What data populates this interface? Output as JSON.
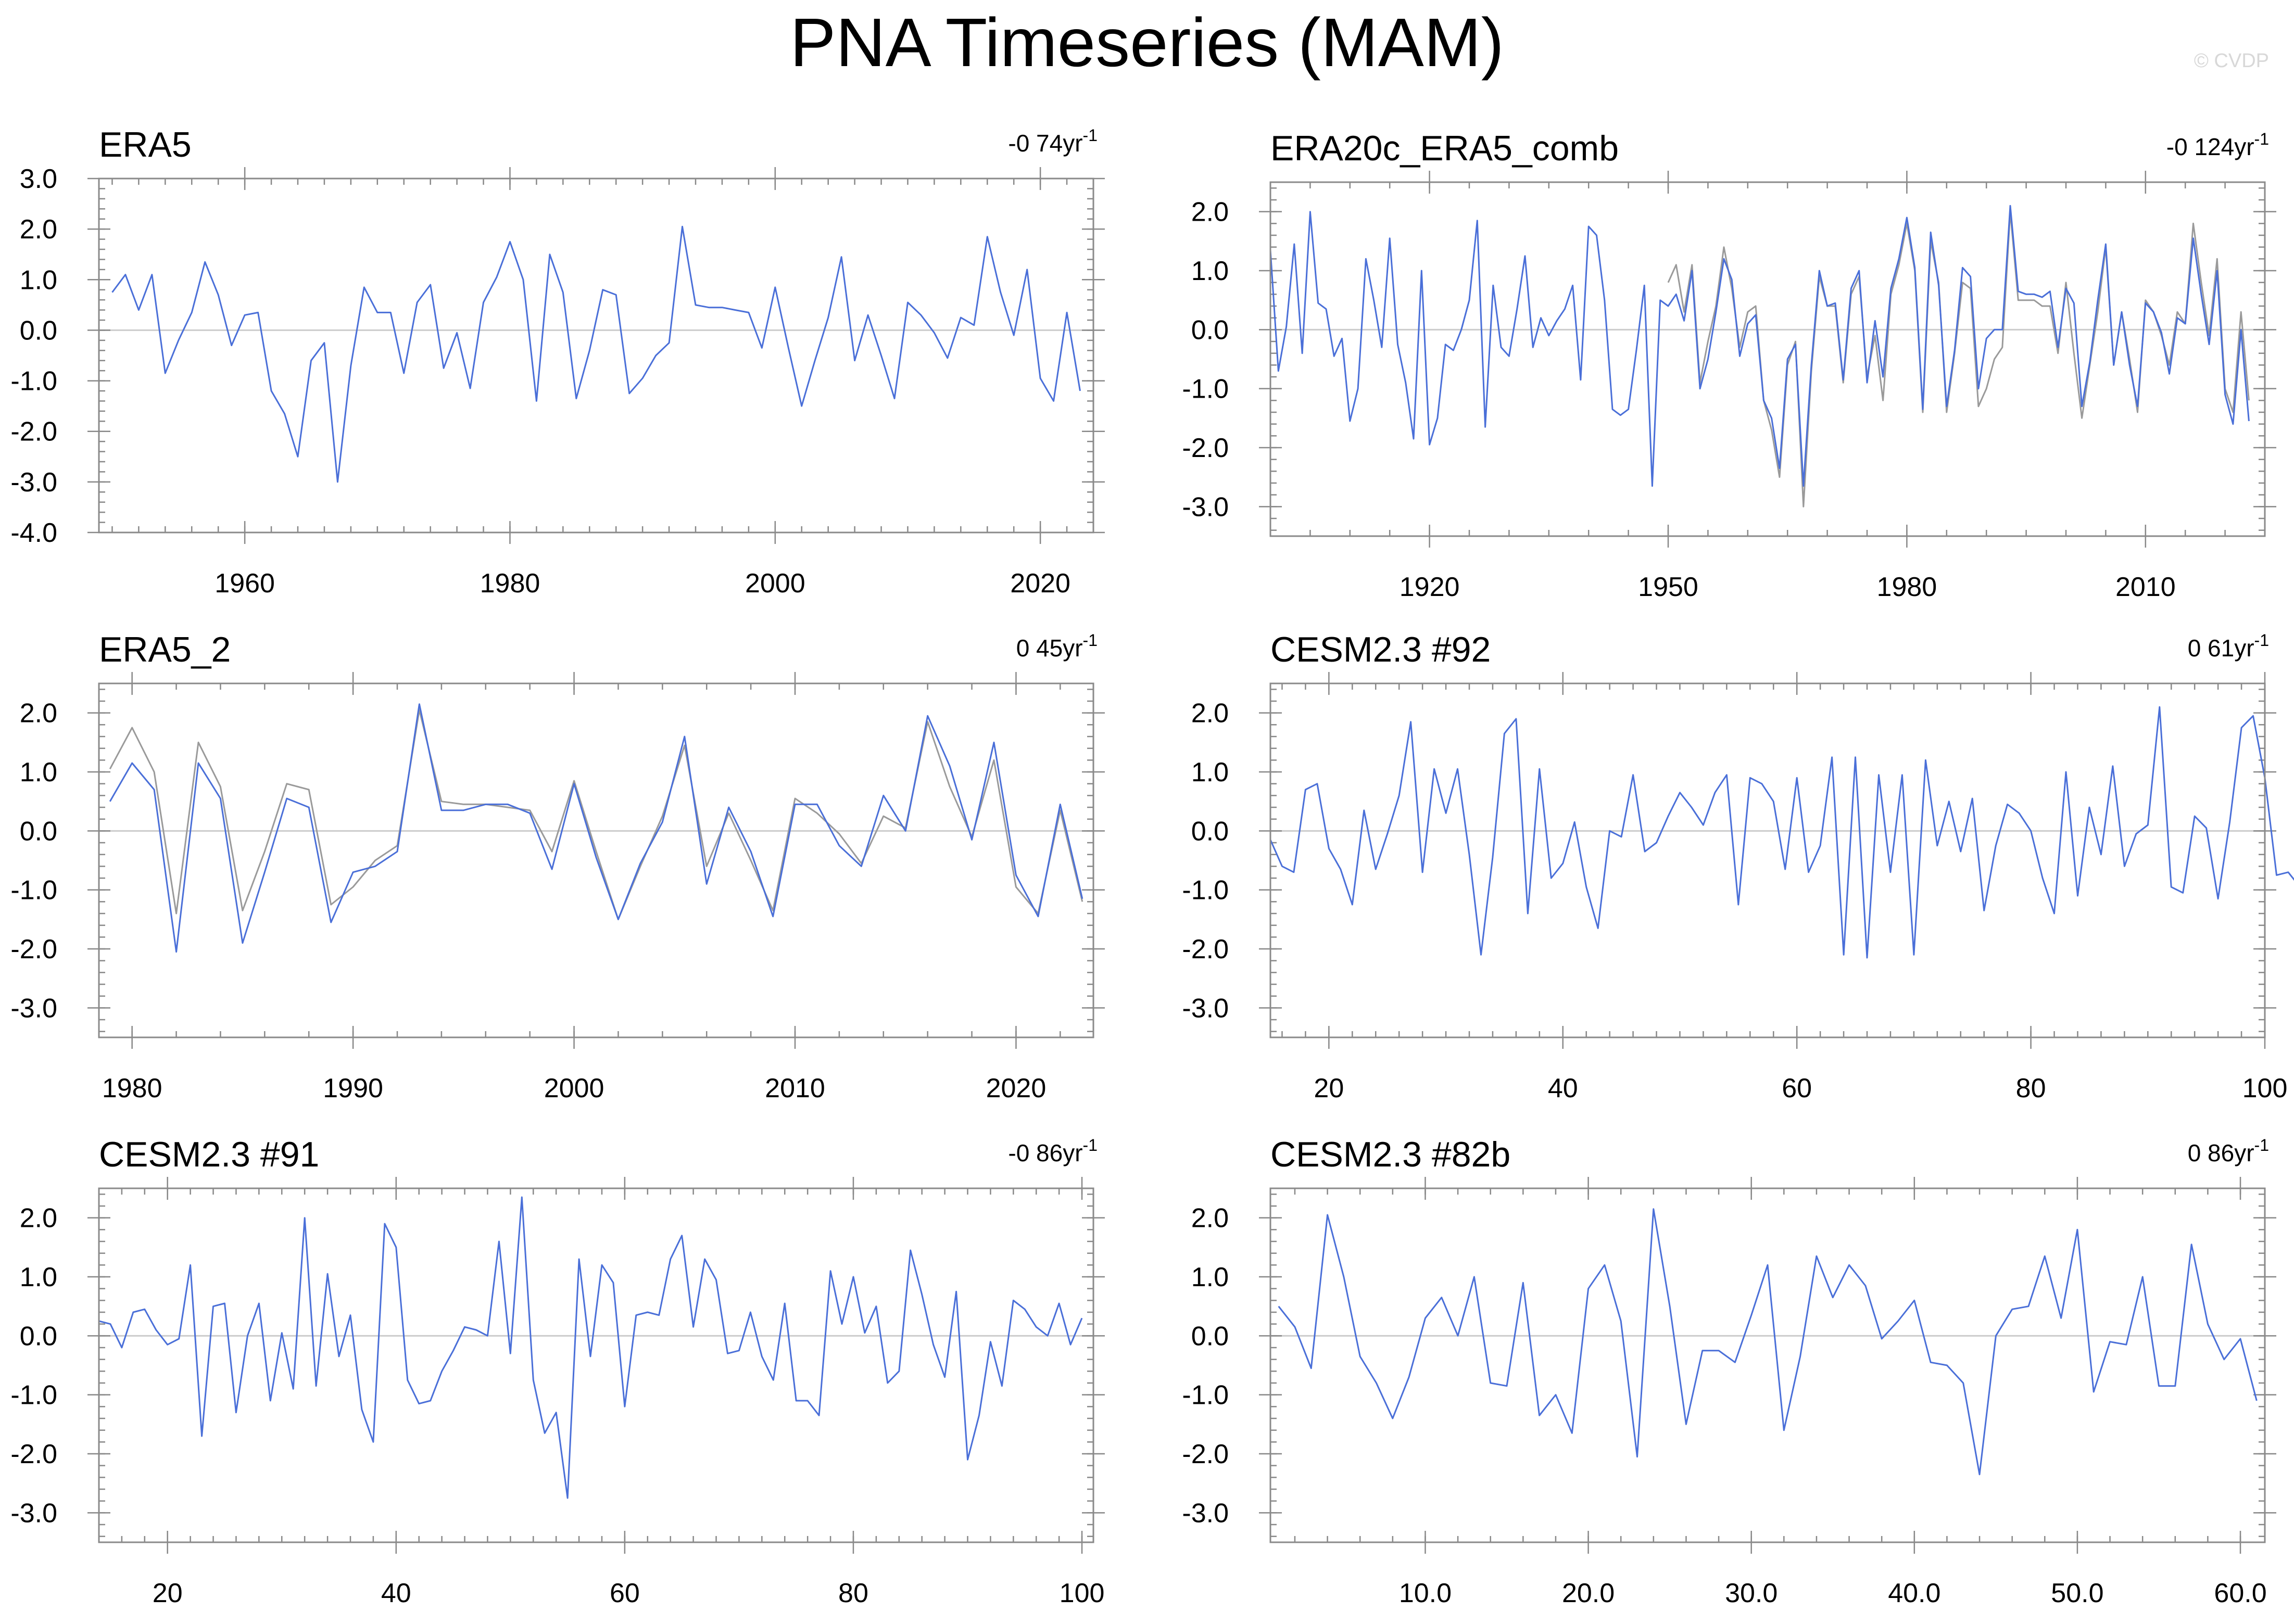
{
  "title": "PNA Timeseries (MAM)",
  "watermark": "© CVDP",
  "colors": {
    "obs_series": "#4a6fd8",
    "ref_series": "#9a9a9a",
    "zero_line": "#cccccc",
    "frame": "#8a8a8a"
  },
  "chart_data": [
    {
      "type": "line",
      "title": "ERA5",
      "trend_label": "-0 74yr",
      "trend_exponent": "-1",
      "xlim": [
        1949,
        2024
      ],
      "ylim": [
        -4.0,
        3.0
      ],
      "xticks": [
        1960,
        1980,
        2000,
        2020
      ],
      "xtick_labels": [
        "1960",
        "1980",
        "2000",
        "2020"
      ],
      "yticks": [
        -4.0,
        -3.0,
        -2.0,
        -1.0,
        0.0,
        1.0,
        2.0,
        3.0
      ],
      "ytick_labels": [
        "-4.0",
        "-3.0",
        "-2.0",
        "-1.0",
        "0.0",
        "1.0",
        "2.0",
        "3.0"
      ],
      "series": [
        {
          "name": "ERA5",
          "color": "#4a6fd8",
          "x_start": 1950,
          "values": [
            0.75,
            1.1,
            0.4,
            1.1,
            -0.85,
            -0.2,
            0.35,
            1.35,
            0.7,
            -0.3,
            0.3,
            0.35,
            -1.2,
            -1.65,
            -2.5,
            -0.6,
            -0.25,
            -3.0,
            -0.7,
            0.85,
            0.35,
            0.35,
            -0.85,
            0.55,
            0.9,
            -0.75,
            -0.05,
            -1.15,
            0.55,
            1.05,
            1.75,
            1.0,
            -1.4,
            1.5,
            0.75,
            -1.35,
            -0.4,
            0.8,
            0.7,
            -1.25,
            -0.95,
            -0.5,
            -0.25,
            2.05,
            0.5,
            0.45,
            0.45,
            0.4,
            0.35,
            -0.35,
            0.85,
            -0.35,
            -1.5,
            -0.6,
            0.25,
            1.45,
            -0.6,
            0.3,
            -0.5,
            -1.35,
            0.55,
            0.3,
            -0.05,
            -0.55,
            0.25,
            0.1,
            1.85,
            0.75,
            -0.1,
            1.2,
            -0.95,
            -1.4,
            0.35,
            -1.2
          ]
        }
      ]
    },
    {
      "type": "line",
      "title": "ERA20c_ERA5_comb",
      "trend_label": "-0 124yr",
      "trend_exponent": "-1",
      "xlim": [
        1900,
        2025
      ],
      "ylim": [
        -3.5,
        2.5
      ],
      "xticks": [
        1920,
        1950,
        1980,
        2010
      ],
      "xtick_labels": [
        "1920",
        "1950",
        "1980",
        "2010"
      ],
      "yticks": [
        -3.0,
        -2.0,
        -1.0,
        0.0,
        1.0,
        2.0
      ],
      "ytick_labels": [
        "-3.0",
        "-2.0",
        "-1.0",
        "0.0",
        "1.0",
        "2.0"
      ],
      "series": [
        {
          "name": "ERA5",
          "color": "#9a9a9a",
          "x_start": 1950,
          "values": [
            0.8,
            1.1,
            0.3,
            1.1,
            -0.9,
            -0.2,
            0.4,
            1.4,
            0.7,
            -0.3,
            0.3,
            0.4,
            -1.2,
            -1.7,
            -2.5,
            -0.6,
            -0.2,
            -3.0,
            -0.7,
            0.9,
            0.4,
            0.4,
            -0.9,
            0.6,
            0.9,
            -0.8,
            -0.1,
            -1.2,
            0.6,
            1.1,
            1.8,
            1.0,
            -1.4,
            1.5,
            0.8,
            -1.4,
            -0.4,
            0.8,
            0.7,
            -1.3,
            -1.0,
            -0.5,
            -0.3,
            2.0,
            0.5,
            0.5,
            0.5,
            0.4,
            0.4,
            -0.4,
            0.8,
            -0.4,
            -1.5,
            -0.6,
            0.3,
            1.4,
            -0.6,
            0.3,
            -0.5,
            -1.4,
            0.5,
            0.3,
            -0.1,
            -0.6,
            0.3,
            0.1,
            1.8,
            0.8,
            -0.1,
            1.2,
            -1.0,
            -1.4,
            0.3,
            -1.2
          ]
        },
        {
          "name": "ERA20c",
          "color": "#4a6fd8",
          "x_start": 1900,
          "values": [
            1.35,
            -0.7,
            0.05,
            1.45,
            -0.4,
            2.0,
            0.45,
            0.35,
            -0.45,
            -0.15,
            -1.55,
            -1.0,
            1.2,
            0.5,
            -0.3,
            1.55,
            -0.25,
            -0.9,
            -1.85,
            1.0,
            -1.95,
            -1.5,
            -0.25,
            -0.35,
            0.0,
            0.5,
            1.85,
            -1.65,
            0.75,
            -0.3,
            -0.45,
            0.35,
            1.25,
            -0.3,
            0.2,
            -0.1,
            0.15,
            0.35,
            0.75,
            -0.85,
            1.75,
            1.6,
            0.5,
            -1.35,
            -1.45,
            -1.35,
            -0.35,
            0.75,
            -2.65,
            0.5,
            0.4,
            0.6,
            0.15,
            1.0,
            -1.0,
            -0.5,
            0.3,
            1.2,
            0.85,
            -0.45,
            0.1,
            0.25,
            -1.2,
            -1.5,
            -2.35,
            -0.5,
            -0.25,
            -2.65,
            -0.6,
            1.0,
            0.4,
            0.45,
            -0.85,
            0.7,
            1.0,
            -0.9,
            0.15,
            -0.8,
            0.7,
            1.2,
            1.9,
            1.05,
            -1.35,
            1.65,
            0.75,
            -1.3,
            -0.35,
            1.05,
            0.9,
            -1.0,
            -0.15,
            0.0,
            0.0,
            2.1,
            0.65,
            0.6,
            0.6,
            0.55,
            0.65,
            -0.3,
            0.7,
            0.45,
            -1.3,
            -0.55,
            0.5,
            1.45,
            -0.6,
            0.3,
            -0.6,
            -1.3,
            0.45,
            0.3,
            -0.05,
            -0.75,
            0.2,
            0.1,
            1.55,
            0.6,
            -0.25,
            1.0,
            -1.1,
            -1.6,
            0.0,
            -1.55
          ]
        }
      ]
    },
    {
      "type": "line",
      "title": "ERA5_2",
      "trend_label": "0 45yr",
      "trend_exponent": "-1",
      "xlim": [
        1978.5,
        2023.5
      ],
      "ylim": [
        -3.5,
        2.5
      ],
      "xticks": [
        1980,
        1990,
        2000,
        2010,
        2020
      ],
      "xtick_labels": [
        "1980",
        "1990",
        "2000",
        "2010",
        "2020"
      ],
      "yticks": [
        -3.0,
        -2.0,
        -1.0,
        0.0,
        1.0,
        2.0
      ],
      "ytick_labels": [
        "-3.0",
        "-2.0",
        "-1.0",
        "0.0",
        "1.0",
        "2.0"
      ],
      "series": [
        {
          "name": "ERA5",
          "color": "#9a9a9a",
          "x_start": 1979,
          "values": [
            1.05,
            1.75,
            1.0,
            -1.4,
            1.5,
            0.75,
            -1.35,
            -0.35,
            0.8,
            0.7,
            -1.25,
            -0.95,
            -0.5,
            -0.25,
            2.05,
            0.5,
            0.45,
            0.45,
            0.4,
            0.35,
            -0.35,
            0.85,
            -0.35,
            -1.5,
            -0.6,
            0.25,
            1.45,
            -0.6,
            0.3,
            -0.5,
            -1.35,
            0.55,
            0.3,
            -0.05,
            -0.55,
            0.25,
            0.05,
            1.85,
            0.75,
            -0.1,
            1.2,
            -0.95,
            -1.4,
            0.35,
            -1.2
          ]
        },
        {
          "name": "ERA5_2",
          "color": "#4a6fd8",
          "x_start": 1979,
          "values": [
            0.5,
            1.15,
            0.7,
            -2.05,
            1.15,
            0.55,
            -1.9,
            -0.7,
            0.55,
            0.4,
            -1.55,
            -0.7,
            -0.6,
            -0.35,
            2.15,
            0.35,
            0.35,
            0.45,
            0.45,
            0.3,
            -0.65,
            0.8,
            -0.45,
            -1.5,
            -0.55,
            0.15,
            1.6,
            -0.9,
            0.4,
            -0.35,
            -1.45,
            0.45,
            0.45,
            -0.25,
            -0.6,
            0.6,
            0.0,
            1.95,
            1.1,
            -0.15,
            1.5,
            -0.75,
            -1.45,
            0.45,
            -1.15
          ]
        }
      ]
    },
    {
      "type": "line",
      "title": "CESM2.3 #92",
      "trend_label": "0 61yr",
      "trend_exponent": "-1",
      "xlim": [
        15,
        100
      ],
      "ylim": [
        -3.5,
        2.5
      ],
      "xticks": [
        20,
        40,
        60,
        80,
        100
      ],
      "xtick_labels": [
        "20",
        "40",
        "60",
        "80",
        "100"
      ],
      "yticks": [
        -3.0,
        -2.0,
        -1.0,
        0.0,
        1.0,
        2.0
      ],
      "ytick_labels": [
        "-3.0",
        "-2.0",
        "-1.0",
        "0.0",
        "1.0",
        "2.0"
      ],
      "series": [
        {
          "name": "CESM2.3 #92",
          "color": "#4a6fd8",
          "x_start": 15,
          "values": [
            -0.15,
            -0.6,
            -0.7,
            0.7,
            0.8,
            -0.3,
            -0.65,
            -1.25,
            0.35,
            -0.65,
            -0.05,
            0.6,
            1.85,
            -0.7,
            1.05,
            0.3,
            1.05,
            -0.4,
            -2.1,
            -0.45,
            1.65,
            1.9,
            -1.4,
            1.05,
            -0.8,
            -0.55,
            0.15,
            -0.95,
            -1.65,
            0.0,
            -0.1,
            0.95,
            -0.35,
            -0.2,
            0.25,
            0.65,
            0.4,
            0.1,
            0.65,
            0.95,
            -1.25,
            0.9,
            0.8,
            0.5,
            -0.65,
            0.9,
            -0.7,
            -0.25,
            1.25,
            -2.1,
            1.25,
            -2.15,
            0.95,
            -0.7,
            0.95,
            -2.1,
            1.2,
            -0.25,
            0.5,
            -0.35,
            0.55,
            -1.35,
            -0.25,
            0.45,
            0.3,
            0.0,
            -0.8,
            -1.4,
            1.0,
            -1.1,
            0.4,
            -0.4,
            1.1,
            -0.6,
            -0.05,
            0.1,
            2.1,
            -0.95,
            -1.05,
            0.25,
            0.05,
            -1.15,
            0.15,
            1.75,
            1.95,
            0.9,
            -0.75,
            -0.7,
            -0.95
          ]
        }
      ]
    },
    {
      "type": "line",
      "title": "CESM2.3 #91",
      "trend_label": "-0 86yr",
      "trend_exponent": "-1",
      "xlim": [
        14,
        101
      ],
      "ylim": [
        -3.5,
        2.5
      ],
      "xticks": [
        20,
        40,
        60,
        80,
        100
      ],
      "xtick_labels": [
        "20",
        "40",
        "60",
        "80",
        "100"
      ],
      "yticks": [
        -3.0,
        -2.0,
        -1.0,
        0.0,
        1.0,
        2.0
      ],
      "ytick_labels": [
        "-3.0",
        "-2.0",
        "-1.0",
        "0.0",
        "1.0",
        "2.0"
      ],
      "series": [
        {
          "name": "CESM2.3 #91",
          "color": "#4a6fd8",
          "x_start": 14,
          "values": [
            0.25,
            0.2,
            -0.2,
            0.4,
            0.45,
            0.1,
            -0.15,
            -0.05,
            1.2,
            -1.7,
            0.5,
            0.55,
            -1.3,
            0.0,
            0.55,
            -1.1,
            0.05,
            -0.9,
            2.0,
            -0.85,
            1.05,
            -0.35,
            0.35,
            -1.25,
            -1.8,
            1.9,
            1.5,
            -0.75,
            -1.15,
            -1.1,
            -0.6,
            -0.25,
            0.15,
            0.1,
            0.0,
            1.6,
            -0.3,
            2.35,
            -0.75,
            -1.65,
            -1.3,
            -2.75,
            1.3,
            -0.35,
            1.2,
            0.9,
            -1.2,
            0.35,
            0.4,
            0.35,
            1.3,
            1.7,
            0.15,
            1.3,
            0.95,
            -0.3,
            -0.25,
            0.4,
            -0.35,
            -0.75,
            0.55,
            -1.1,
            -1.1,
            -1.35,
            1.1,
            0.2,
            1.0,
            0.05,
            0.5,
            -0.8,
            -0.6,
            1.45,
            0.7,
            -0.15,
            -0.7,
            0.75,
            -2.1,
            -1.35,
            -0.1,
            -0.85,
            0.6,
            0.45,
            0.15,
            0.0,
            0.55,
            -0.15,
            0.3
          ]
        }
      ]
    },
    {
      "type": "line",
      "title": "CESM2.3 #82b",
      "trend_label": "0 86yr",
      "trend_exponent": "-1",
      "xlim": [
        0.5,
        61.5
      ],
      "ylim": [
        -3.5,
        2.5
      ],
      "xticks": [
        10,
        20,
        30,
        40,
        50,
        60
      ],
      "xtick_labels": [
        "10.0",
        "20.0",
        "30.0",
        "40.0",
        "50.0",
        "60.0"
      ],
      "yticks": [
        -3.0,
        -2.0,
        -1.0,
        0.0,
        1.0,
        2.0
      ],
      "ytick_labels": [
        "-3.0",
        "-2.0",
        "-1.0",
        "0.0",
        "1.0",
        "2.0"
      ],
      "series": [
        {
          "name": "CESM2.3 #82b",
          "color": "#4a6fd8",
          "x_start": 1,
          "values": [
            0.5,
            0.15,
            -0.55,
            2.05,
            1.0,
            -0.35,
            -0.8,
            -1.4,
            -0.7,
            0.3,
            0.65,
            0.0,
            1.0,
            -0.8,
            -0.85,
            0.9,
            -1.35,
            -1.0,
            -1.65,
            0.8,
            1.2,
            0.25,
            -2.05,
            2.15,
            0.5,
            -1.5,
            -0.25,
            -0.25,
            -0.45,
            0.35,
            1.2,
            -1.6,
            -0.35,
            1.35,
            0.65,
            1.2,
            0.85,
            -0.05,
            0.25,
            0.6,
            -0.45,
            -0.5,
            -0.8,
            -2.35,
            0.0,
            0.45,
            0.5,
            1.35,
            0.3,
            1.8,
            -0.95,
            -0.1,
            -0.15,
            1.0,
            -0.85,
            -0.85,
            1.55,
            0.2,
            -0.4,
            -0.05,
            -1.1
          ]
        }
      ]
    }
  ]
}
